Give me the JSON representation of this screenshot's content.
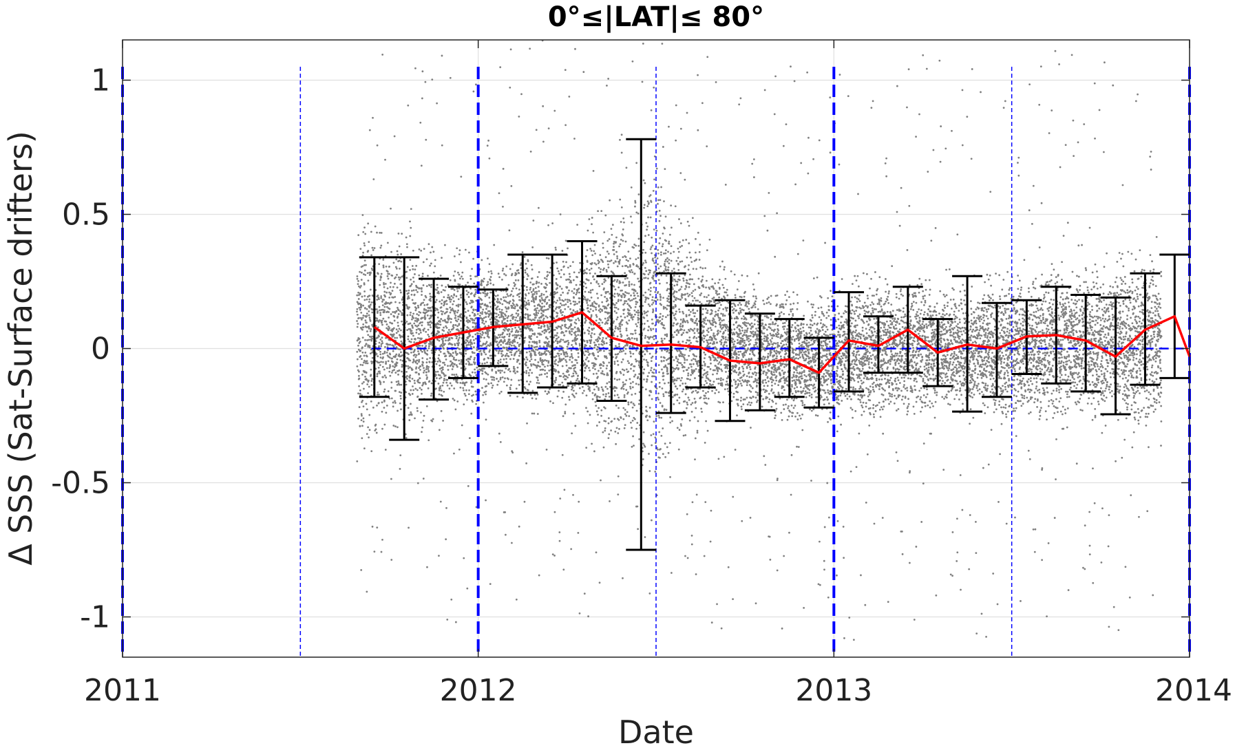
{
  "chart_data": {
    "type": "scatter",
    "title": "0°≤|LAT|≤ 80°",
    "xlabel": "Date",
    "ylabel": "Δ SSS (Sat-Surface drifters)",
    "xlim": [
      2011.0,
      2014.0
    ],
    "ylim": [
      -1.15,
      1.15
    ],
    "x_ticks": [
      2011,
      2012,
      2013,
      2014
    ],
    "x_tick_labels": [
      "2011",
      "2012",
      "2013",
      "2014"
    ],
    "y_ticks": [
      -1,
      -0.5,
      0,
      0.5,
      1
    ],
    "y_tick_labels": [
      "-1",
      "-0.5",
      "0",
      "0.5",
      "1"
    ],
    "grid": true,
    "colors": {
      "scatter": "#808080",
      "mean_line": "#ff0000",
      "error_bars": "#000000",
      "reference_lines": "#0000ff",
      "grid": "#e0e0e0"
    },
    "reference_lines": {
      "horizontal_zero": {
        "y": 0,
        "x_start": 2011.7,
        "x_end": 2014.0,
        "style": "dashed"
      },
      "year_boundaries_thick": [
        2011.0,
        2012.0,
        2013.0,
        2014.0
      ],
      "mid_year_thin": [
        2011.5,
        2012.5,
        2013.5
      ]
    },
    "scatter_cloud": {
      "x_range": [
        2011.66,
        2013.92
      ],
      "description_band": [
        {
          "x": 2011.7,
          "lo": -0.4,
          "hi": 0.6
        },
        {
          "x": 2011.9,
          "lo": -0.3,
          "hi": 0.5
        },
        {
          "x": 2012.1,
          "lo": -0.2,
          "hi": 0.45
        },
        {
          "x": 2012.3,
          "lo": -0.35,
          "hi": 0.6
        },
        {
          "x": 2012.5,
          "lo": -0.6,
          "hi": 0.9
        },
        {
          "x": 2012.7,
          "lo": -0.25,
          "hi": 0.4
        },
        {
          "x": 2012.9,
          "lo": -0.3,
          "hi": 0.3
        },
        {
          "x": 2013.1,
          "lo": -0.3,
          "hi": 0.4
        },
        {
          "x": 2013.3,
          "lo": -0.25,
          "hi": 0.35
        },
        {
          "x": 2013.5,
          "lo": -0.3,
          "hi": 0.4
        },
        {
          "x": 2013.7,
          "lo": -0.3,
          "hi": 0.45
        },
        {
          "x": 2013.9,
          "lo": -0.35,
          "hi": 0.5
        }
      ]
    },
    "monthly_stats": {
      "x": [
        2011.708,
        2011.792,
        2011.875,
        2011.958,
        2012.042,
        2012.125,
        2012.208,
        2012.292,
        2012.375,
        2012.458,
        2012.542,
        2012.625,
        2012.708,
        2012.792,
        2012.875,
        2012.958,
        2013.042,
        2013.125,
        2013.208,
        2013.292,
        2013.375,
        2013.458,
        2013.542,
        2013.625,
        2013.708,
        2013.792,
        2013.875,
        2013.958,
        2014.0
      ],
      "mean": [
        0.08,
        0.0,
        0.04,
        0.06,
        0.08,
        0.09,
        0.1,
        0.135,
        0.04,
        0.01,
        0.015,
        0.005,
        -0.045,
        -0.055,
        -0.04,
        -0.09,
        0.03,
        0.01,
        0.07,
        -0.015,
        0.015,
        0.0,
        0.045,
        0.05,
        0.03,
        -0.03,
        0.07,
        0.12,
        -0.03
      ],
      "upper": [
        0.34,
        0.34,
        0.26,
        0.23,
        0.22,
        0.35,
        0.35,
        0.4,
        0.27,
        0.78,
        0.28,
        0.16,
        0.18,
        0.13,
        0.11,
        0.04,
        0.21,
        0.12,
        0.23,
        0.11,
        0.27,
        0.17,
        0.18,
        0.23,
        0.2,
        0.19,
        0.28,
        0.35,
        null
      ],
      "lower": [
        -0.18,
        -0.34,
        -0.19,
        -0.11,
        -0.065,
        -0.165,
        -0.145,
        -0.13,
        -0.195,
        -0.75,
        -0.24,
        -0.145,
        -0.27,
        -0.23,
        -0.18,
        -0.22,
        -0.16,
        -0.09,
        -0.09,
        -0.14,
        -0.235,
        -0.18,
        -0.095,
        -0.13,
        -0.16,
        -0.245,
        -0.135,
        -0.11,
        null
      ]
    }
  }
}
